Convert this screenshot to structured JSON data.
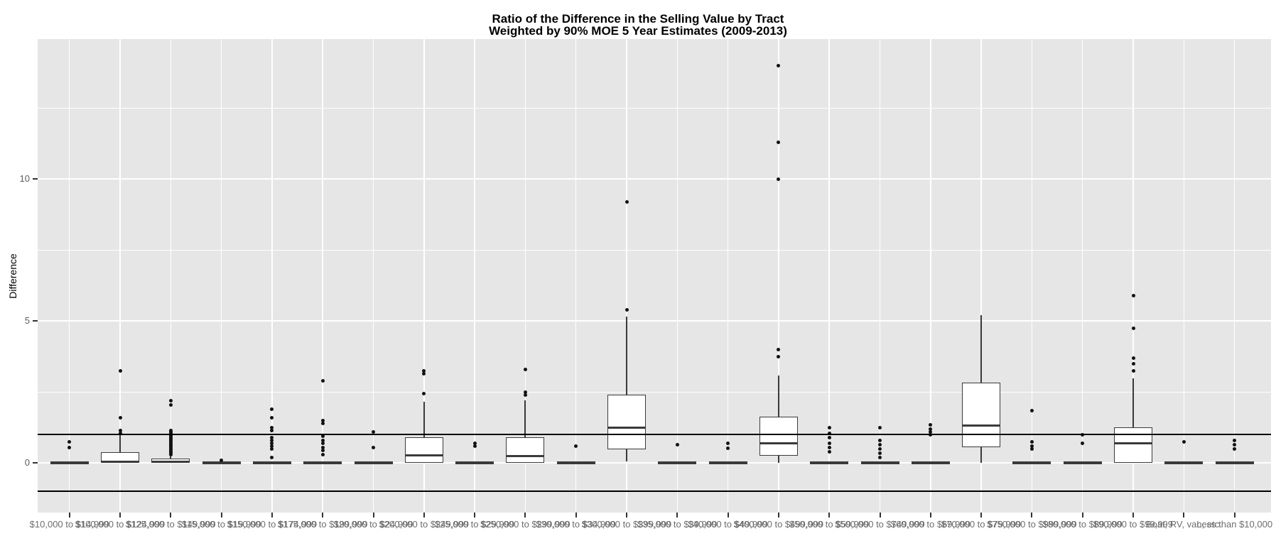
{
  "chart_data": {
    "type": "boxplot",
    "title": "Ratio of the Difference in the Selling Value by Tract",
    "subtitle": "Weighted by 90% MOE 5 Year Estimates (2009-2013)",
    "ylabel": "Difference",
    "xlabel": "",
    "ylim": [
      -1.75,
      14.9
    ],
    "grid": "on",
    "y_tick_values": [
      0,
      5,
      10
    ],
    "y_tick_labels": [
      "0",
      "5",
      "10"
    ],
    "y_minor_gridlines": [
      2.5,
      7.5,
      12.5
    ],
    "reference_lines": [
      1,
      -1
    ],
    "categories": [
      "$10,000 to $14,999",
      "$100,000 to $124,999",
      "$125,000 to $149,999",
      "$15,000 to $19,999",
      "$150,000 to $174,999",
      "$175,000 to $199,999",
      "$20,000 to $24,999",
      "$200,000 to $249,999",
      "$25,000 to $29,999",
      "$250,000 to $299,999",
      "$30,000 to $34,999",
      "$300,000 to $399,999",
      "$35,000 to $39,999",
      "$40,000 to $49,999",
      "$400,000 to $499,999",
      "$50,000 to $59,999",
      "$500,000 to $749,999",
      "$60,000 to $69,999",
      "$70,000 to $79,999",
      "$750,000 to $999,999",
      "$80,000 to $89,999",
      "$90,000 to $99,999",
      "Boat, RV, van, etc.",
      "Less than $10,000"
    ],
    "boxes": [
      {
        "flat": true,
        "q1": 0,
        "median": 0,
        "q3": 0,
        "whisker_low": 0,
        "whisker_high": 0,
        "outliers": [
          0.75,
          0.55
        ]
      },
      {
        "flat": false,
        "q1": 0,
        "median": 0.05,
        "q3": 0.38,
        "whisker_low": 0,
        "whisker_high": 1.0,
        "outliers": [
          1.05,
          1.15,
          1.6,
          3.25
        ]
      },
      {
        "flat": false,
        "q1": 0,
        "median": 0.04,
        "q3": 0.15,
        "whisker_low": 0,
        "whisker_high": 0.22,
        "outliers": [
          0.3,
          0.34,
          0.38,
          0.42,
          0.46,
          0.5,
          0.54,
          0.58,
          0.62,
          0.66,
          0.7,
          0.74,
          0.78,
          0.82,
          0.86,
          0.9,
          0.95,
          1.0,
          1.05,
          1.1,
          1.15,
          2.05,
          2.18
        ]
      },
      {
        "flat": true,
        "q1": 0,
        "median": 0,
        "q3": 0,
        "whisker_low": 0,
        "whisker_high": 0,
        "outliers": [
          0.1
        ]
      },
      {
        "flat": true,
        "q1": 0,
        "median": 0,
        "q3": 0,
        "whisker_low": 0,
        "whisker_high": 0,
        "outliers": [
          1.9,
          1.6,
          1.25,
          1.15,
          0.9,
          0.8,
          0.7,
          0.6,
          0.5,
          0.2
        ]
      },
      {
        "flat": true,
        "q1": 0,
        "median": 0,
        "q3": 0,
        "whisker_low": 0,
        "whisker_high": 0,
        "outliers": [
          2.9,
          1.5,
          1.4,
          0.95,
          0.8,
          0.7,
          0.55,
          0.45,
          0.3
        ]
      },
      {
        "flat": true,
        "q1": 0,
        "median": 0,
        "q3": 0,
        "whisker_low": 0,
        "whisker_high": 0,
        "outliers": [
          1.1,
          0.55
        ]
      },
      {
        "flat": false,
        "q1": 0,
        "median": 0.27,
        "q3": 0.9,
        "whisker_low": 0,
        "whisker_high": 2.15,
        "outliers": [
          2.45,
          3.15,
          3.25
        ]
      },
      {
        "flat": true,
        "q1": 0,
        "median": 0,
        "q3": 0,
        "whisker_low": 0,
        "whisker_high": 0,
        "outliers": [
          0.7,
          0.6
        ]
      },
      {
        "flat": false,
        "q1": 0,
        "median": 0.25,
        "q3": 0.9,
        "whisker_low": 0,
        "whisker_high": 2.2,
        "outliers": [
          2.4,
          2.5,
          3.3
        ]
      },
      {
        "flat": true,
        "q1": 0,
        "median": 0,
        "q3": 0,
        "whisker_low": 0,
        "whisker_high": 0,
        "outliers": [
          0.6
        ]
      },
      {
        "flat": false,
        "q1": 0.48,
        "median": 1.25,
        "q3": 2.4,
        "whisker_low": 0.05,
        "whisker_high": 5.15,
        "outliers": [
          5.4,
          9.2
        ]
      },
      {
        "flat": true,
        "q1": 0,
        "median": 0,
        "q3": 0,
        "whisker_low": 0,
        "whisker_high": 0,
        "outliers": [
          0.63
        ]
      },
      {
        "flat": true,
        "q1": 0,
        "median": 0,
        "q3": 0,
        "whisker_low": 0,
        "whisker_high": 0,
        "outliers": [
          0.7,
          0.52
        ]
      },
      {
        "flat": false,
        "q1": 0.25,
        "median": 0.7,
        "q3": 1.63,
        "whisker_low": 0,
        "whisker_high": 3.07,
        "outliers": [
          3.75,
          4.0,
          10.0,
          11.3,
          14.0
        ]
      },
      {
        "flat": true,
        "q1": 0,
        "median": 0,
        "q3": 0,
        "whisker_low": 0,
        "whisker_high": 0,
        "outliers": [
          1.25,
          1.05,
          0.9,
          0.7,
          0.55,
          0.4
        ]
      },
      {
        "flat": true,
        "q1": 0,
        "median": 0,
        "q3": 0,
        "whisker_low": 0,
        "whisker_high": 0,
        "outliers": [
          1.25,
          0.8,
          0.65,
          0.5,
          0.35,
          0.2
        ]
      },
      {
        "flat": true,
        "q1": 0,
        "median": 0,
        "q3": 0,
        "whisker_low": 0,
        "whisker_high": 0,
        "outliers": [
          1.35,
          1.2,
          1.1,
          1.0
        ]
      },
      {
        "flat": false,
        "q1": 0.55,
        "median": 1.32,
        "q3": 2.82,
        "whisker_low": 0,
        "whisker_high": 5.2,
        "outliers": []
      },
      {
        "flat": true,
        "q1": 0,
        "median": 0,
        "q3": 0,
        "whisker_low": 0,
        "whisker_high": 0,
        "outliers": [
          1.85,
          0.75,
          0.6,
          0.5
        ]
      },
      {
        "flat": true,
        "q1": 0,
        "median": 0,
        "q3": 0,
        "whisker_low": 0,
        "whisker_high": 0,
        "outliers": [
          1.0,
          0.68
        ]
      },
      {
        "flat": false,
        "q1": 0,
        "median": 0.68,
        "q3": 1.25,
        "whisker_low": 0,
        "whisker_high": 2.97,
        "outliers": [
          3.23,
          3.5,
          3.68,
          4.75,
          5.9
        ]
      },
      {
        "flat": true,
        "q1": 0,
        "median": 0,
        "q3": 0,
        "whisker_low": 0,
        "whisker_high": 0,
        "outliers": [
          0.75
        ]
      },
      {
        "flat": true,
        "q1": 0,
        "median": 0,
        "q3": 0,
        "whisker_low": 0,
        "whisker_high": 0,
        "outliers": [
          0.8,
          0.65,
          0.5
        ]
      }
    ],
    "colors": {
      "panel_background": "#e6e6e6",
      "gridline": "#ffffff",
      "box_stroke": "#3a3a3a",
      "box_fill": "#ffffff",
      "outlier": "#121212",
      "reference_line": "#000000",
      "axis_text": "#6e6e6e"
    }
  }
}
